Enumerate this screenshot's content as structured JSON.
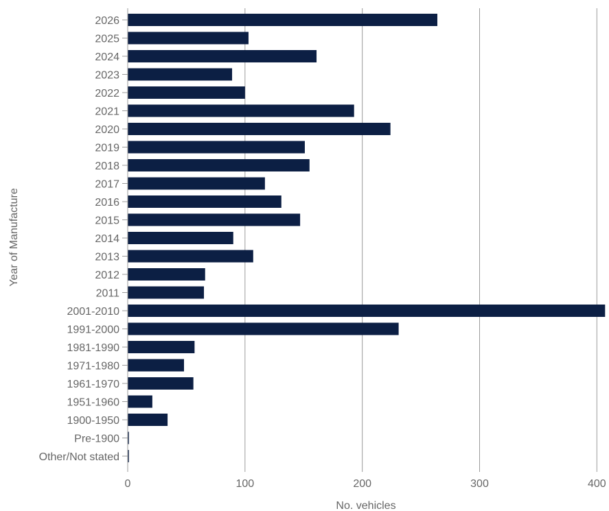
{
  "chart_data": {
    "type": "bar",
    "orientation": "horizontal",
    "xlabel": "No. vehicles",
    "ylabel": "Year of Manufacture",
    "xlim": [
      0,
      408
    ],
    "x_ticks": [
      0,
      100,
      200,
      300,
      400
    ],
    "grid": "vertical",
    "bar_color": "#0c1f44",
    "categories": [
      "2026",
      "2025",
      "2024",
      "2023",
      "2022",
      "2021",
      "2020",
      "2019",
      "2018",
      "2017",
      "2016",
      "2015",
      "2014",
      "2013",
      "2012",
      "2011",
      "2001-2010",
      "1991-2000",
      "1981-1990",
      "1971-1980",
      "1961-1970",
      "1951-1960",
      "1900-1950",
      "Pre-1900",
      "Other/Not stated"
    ],
    "values": [
      264,
      103,
      161,
      89,
      100,
      193,
      224,
      151,
      155,
      117,
      131,
      147,
      90,
      107,
      66,
      65,
      407,
      231,
      57,
      48,
      56,
      21,
      34,
      1,
      1
    ]
  }
}
